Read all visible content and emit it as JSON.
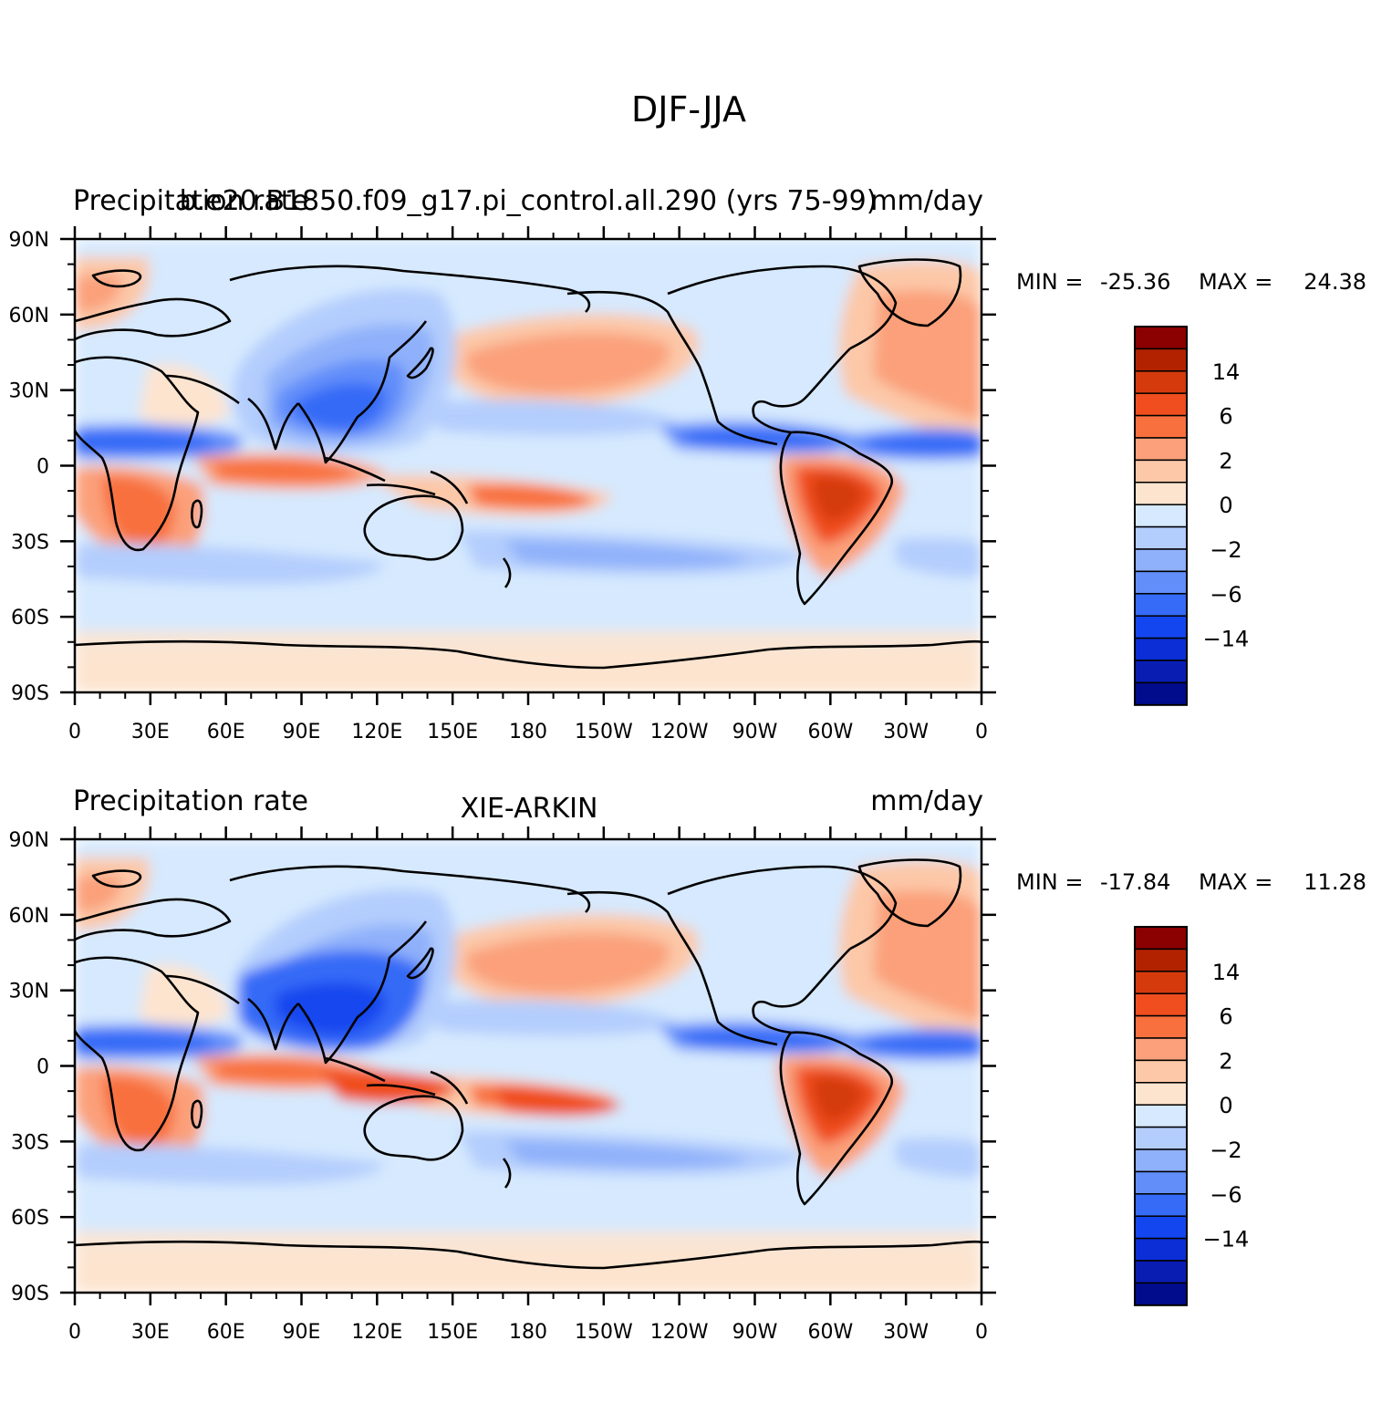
{
  "figure": {
    "title": "DJF-JJA"
  },
  "lon_ticks": [
    "0",
    "30E",
    "60E",
    "90E",
    "120E",
    "150E",
    "180",
    "150W",
    "120W",
    "90W",
    "60W",
    "30W",
    "0"
  ],
  "lat_ticks": [
    "90N",
    "60N",
    "30N",
    "0",
    "30S",
    "60S",
    "90S"
  ],
  "colorbar": {
    "labels": [
      "14",
      "6",
      "2",
      "0",
      "-2",
      "-6",
      "-14"
    ],
    "colors": [
      "#8b0000",
      "#b22200",
      "#d43a0c",
      "#f04e1e",
      "#f8703e",
      "#fba07a",
      "#fcc8a8",
      "#fde4cf",
      "#d6e9fe",
      "#b3cdfd",
      "#8fb0fa",
      "#628efa",
      "#366bf7",
      "#1446ef",
      "#0b2ed6",
      "#0a1db3",
      "#000c8c"
    ]
  },
  "panels": [
    {
      "left_title": "Precipitation rate",
      "center_title": "b.e20.B1850.f09_g17.pi_control.all.290 (yrs 75-99)",
      "right_title": "mm/day",
      "stats": {
        "min_label": "MIN =",
        "min": "-25.36",
        "max_label": "MAX =",
        "max": "24.38"
      }
    },
    {
      "left_title": "Precipitation rate",
      "center_title": "XIE-ARKIN",
      "right_title": "mm/day",
      "stats": {
        "min_label": "MIN =",
        "min": "-17.84",
        "max_label": "MAX =",
        "max": "11.28"
      }
    }
  ],
  "chart_data": {
    "type": "heatmap",
    "variable": "Precipitation rate",
    "units": "mm/day",
    "season_difference": "DJF-JJA",
    "x_range": [
      0,
      360
    ],
    "y_range": [
      -90,
      90
    ],
    "color_levels": [
      -14,
      -6,
      -2,
      0,
      2,
      6,
      14
    ],
    "panels": [
      {
        "name": "b.e20.B1850.f09_g17.pi_control.all.290 (yrs 75-99)",
        "min": -25.36,
        "max": 24.38
      },
      {
        "name": "XIE-ARKIN",
        "min": -17.84,
        "max": 11.28
      }
    ]
  }
}
